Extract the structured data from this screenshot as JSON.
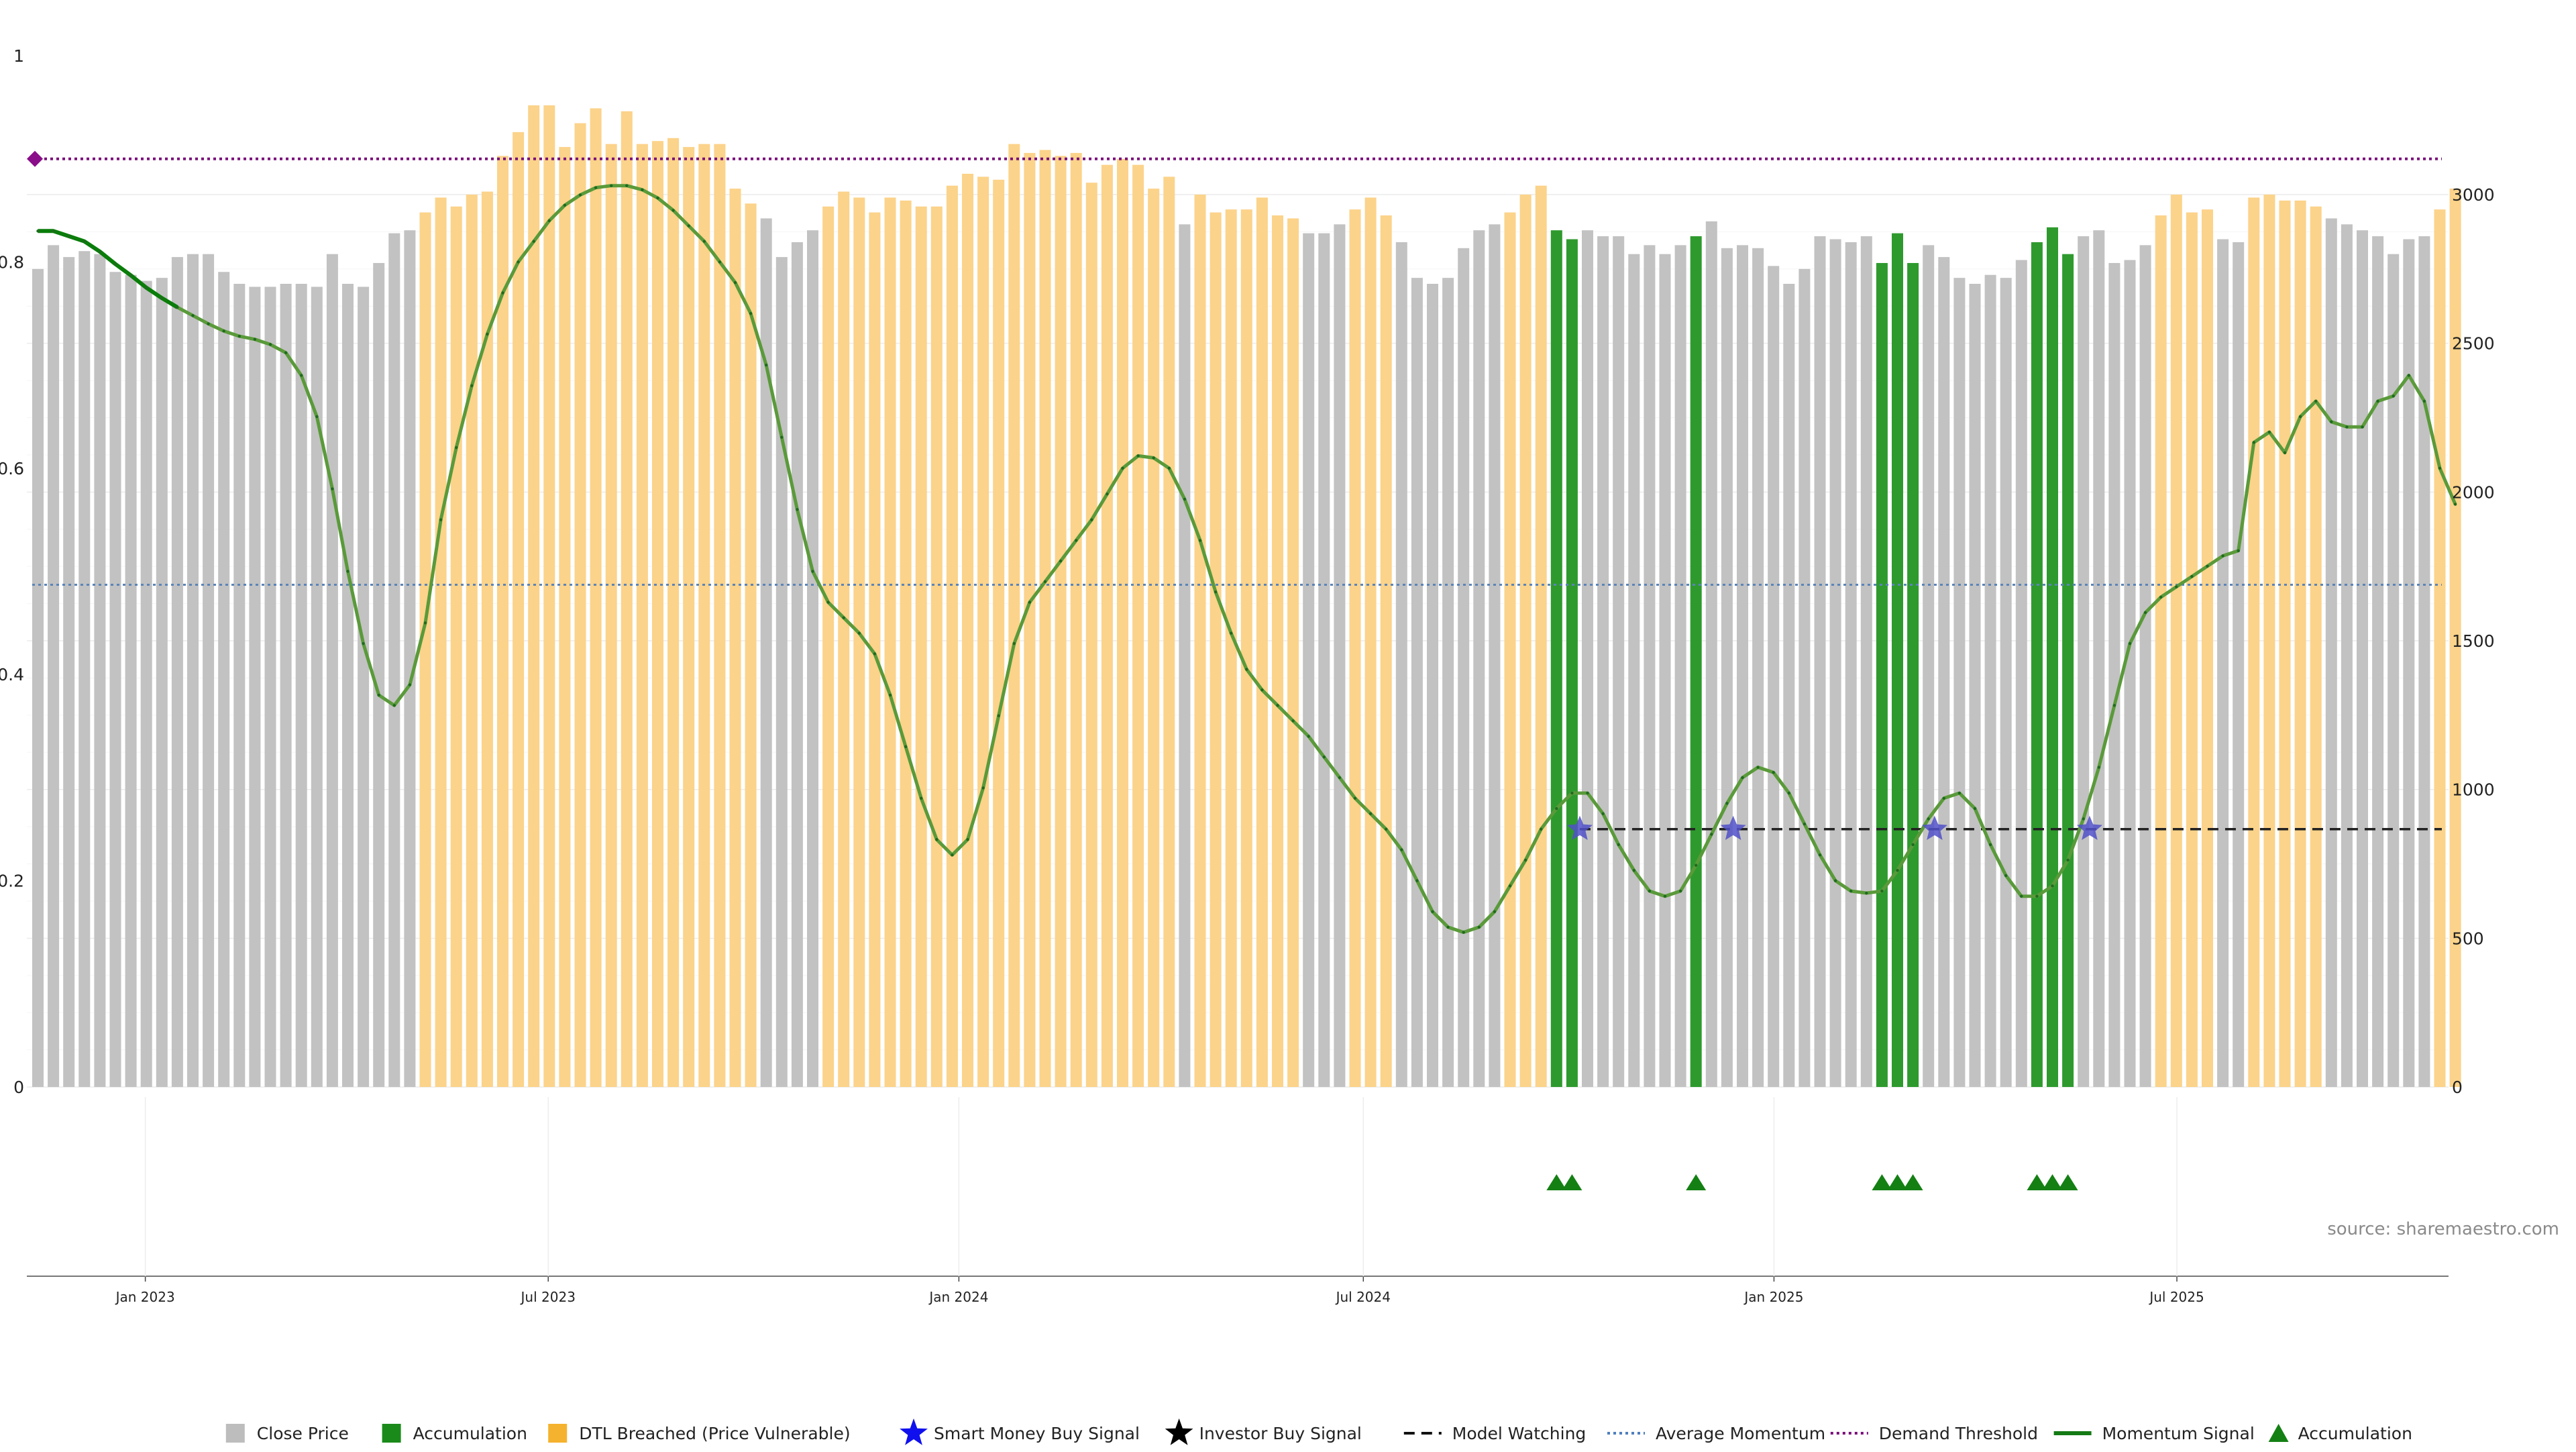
{
  "chart_data": {
    "type": "bar",
    "source_text": "source: sharemaestro.com",
    "left_axis": {
      "ticks": [
        {
          "label": "0",
          "value": 0
        },
        {
          "label": "0.2",
          "value": 0.2
        },
        {
          "label": "0.4",
          "value": 0.4
        },
        {
          "label": "0.6",
          "value": 0.6
        },
        {
          "label": "0.8",
          "value": 0.8
        },
        {
          "label": "1",
          "value": 1
        }
      ],
      "range": [
        0,
        1
      ]
    },
    "right_axis": {
      "ticks": [
        "0",
        "500",
        "1000",
        "1500",
        "2000",
        "2500",
        "3000"
      ],
      "range": [
        0,
        3469
      ]
    },
    "x_ticks": [
      "Jan 2023",
      "Jul 2023",
      "Jan 2024",
      "Jul 2024",
      "Jan 2025",
      "Jul 2025"
    ],
    "x_tick_bar_positions": [
      7.3,
      33.3,
      59.8,
      85.9,
      112.4,
      138.4
    ],
    "demand_threshold": 0.9,
    "average_momentum": 0.487,
    "model_watching_level": 0.25,
    "model_watching_start_bar": 99.5,
    "momentum_start_marker_value": 0.9,
    "price_bars": [
      {
        "v": 2750,
        "s": "close"
      },
      {
        "v": 2830,
        "s": "close"
      },
      {
        "v": 2790,
        "s": "close"
      },
      {
        "v": 2810,
        "s": "close"
      },
      {
        "v": 2800,
        "s": "close"
      },
      {
        "v": 2740,
        "s": "close"
      },
      {
        "v": 2730,
        "s": "close"
      },
      {
        "v": 2710,
        "s": "close"
      },
      {
        "v": 2720,
        "s": "close"
      },
      {
        "v": 2790,
        "s": "close"
      },
      {
        "v": 2800,
        "s": "close"
      },
      {
        "v": 2800,
        "s": "close"
      },
      {
        "v": 2740,
        "s": "close"
      },
      {
        "v": 2700,
        "s": "close"
      },
      {
        "v": 2690,
        "s": "close"
      },
      {
        "v": 2690,
        "s": "close"
      },
      {
        "v": 2700,
        "s": "close"
      },
      {
        "v": 2700,
        "s": "close"
      },
      {
        "v": 2690,
        "s": "close"
      },
      {
        "v": 2800,
        "s": "close"
      },
      {
        "v": 2700,
        "s": "close"
      },
      {
        "v": 2690,
        "s": "close"
      },
      {
        "v": 2770,
        "s": "close"
      },
      {
        "v": 2870,
        "s": "close"
      },
      {
        "v": 2880,
        "s": "close"
      },
      {
        "v": 2940,
        "s": "dtl"
      },
      {
        "v": 2990,
        "s": "dtl"
      },
      {
        "v": 2960,
        "s": "dtl"
      },
      {
        "v": 3000,
        "s": "dtl"
      },
      {
        "v": 3010,
        "s": "dtl"
      },
      {
        "v": 3130,
        "s": "dtl"
      },
      {
        "v": 3210,
        "s": "dtl"
      },
      {
        "v": 3300,
        "s": "dtl"
      },
      {
        "v": 3300,
        "s": "dtl"
      },
      {
        "v": 3160,
        "s": "dtl"
      },
      {
        "v": 3240,
        "s": "dtl"
      },
      {
        "v": 3290,
        "s": "dtl"
      },
      {
        "v": 3170,
        "s": "dtl"
      },
      {
        "v": 3280,
        "s": "dtl"
      },
      {
        "v": 3170,
        "s": "dtl"
      },
      {
        "v": 3180,
        "s": "dtl"
      },
      {
        "v": 3190,
        "s": "dtl"
      },
      {
        "v": 3160,
        "s": "dtl"
      },
      {
        "v": 3170,
        "s": "dtl"
      },
      {
        "v": 3170,
        "s": "dtl"
      },
      {
        "v": 3020,
        "s": "dtl"
      },
      {
        "v": 2970,
        "s": "dtl"
      },
      {
        "v": 2920,
        "s": "close"
      },
      {
        "v": 2790,
        "s": "close"
      },
      {
        "v": 2840,
        "s": "close"
      },
      {
        "v": 2880,
        "s": "close"
      },
      {
        "v": 2960,
        "s": "dtl"
      },
      {
        "v": 3010,
        "s": "dtl"
      },
      {
        "v": 2990,
        "s": "dtl"
      },
      {
        "v": 2940,
        "s": "dtl"
      },
      {
        "v": 2990,
        "s": "dtl"
      },
      {
        "v": 2980,
        "s": "dtl"
      },
      {
        "v": 2960,
        "s": "dtl"
      },
      {
        "v": 2960,
        "s": "dtl"
      },
      {
        "v": 3030,
        "s": "dtl"
      },
      {
        "v": 3070,
        "s": "dtl"
      },
      {
        "v": 3060,
        "s": "dtl"
      },
      {
        "v": 3050,
        "s": "dtl"
      },
      {
        "v": 3170,
        "s": "dtl"
      },
      {
        "v": 3140,
        "s": "dtl"
      },
      {
        "v": 3150,
        "s": "dtl"
      },
      {
        "v": 3130,
        "s": "dtl"
      },
      {
        "v": 3140,
        "s": "dtl"
      },
      {
        "v": 3040,
        "s": "dtl"
      },
      {
        "v": 3100,
        "s": "dtl"
      },
      {
        "v": 3120,
        "s": "dtl"
      },
      {
        "v": 3100,
        "s": "dtl"
      },
      {
        "v": 3020,
        "s": "dtl"
      },
      {
        "v": 3060,
        "s": "dtl"
      },
      {
        "v": 2900,
        "s": "close"
      },
      {
        "v": 3000,
        "s": "dtl"
      },
      {
        "v": 2940,
        "s": "dtl"
      },
      {
        "v": 2950,
        "s": "dtl"
      },
      {
        "v": 2950,
        "s": "dtl"
      },
      {
        "v": 2990,
        "s": "dtl"
      },
      {
        "v": 2930,
        "s": "dtl"
      },
      {
        "v": 2920,
        "s": "dtl"
      },
      {
        "v": 2870,
        "s": "close"
      },
      {
        "v": 2870,
        "s": "close"
      },
      {
        "v": 2900,
        "s": "close"
      },
      {
        "v": 2950,
        "s": "dtl"
      },
      {
        "v": 2990,
        "s": "dtl"
      },
      {
        "v": 2930,
        "s": "dtl"
      },
      {
        "v": 2840,
        "s": "close"
      },
      {
        "v": 2720,
        "s": "close"
      },
      {
        "v": 2700,
        "s": "close"
      },
      {
        "v": 2720,
        "s": "close"
      },
      {
        "v": 2820,
        "s": "close"
      },
      {
        "v": 2880,
        "s": "close"
      },
      {
        "v": 2900,
        "s": "close"
      },
      {
        "v": 2940,
        "s": "dtl"
      },
      {
        "v": 3000,
        "s": "dtl"
      },
      {
        "v": 3030,
        "s": "dtl"
      },
      {
        "v": 2880,
        "s": "accum"
      },
      {
        "v": 2850,
        "s": "accum"
      },
      {
        "v": 2880,
        "s": "close"
      },
      {
        "v": 2860,
        "s": "close"
      },
      {
        "v": 2860,
        "s": "close"
      },
      {
        "v": 2800,
        "s": "close"
      },
      {
        "v": 2830,
        "s": "close"
      },
      {
        "v": 2800,
        "s": "close"
      },
      {
        "v": 2830,
        "s": "close"
      },
      {
        "v": 2860,
        "s": "accum"
      },
      {
        "v": 2910,
        "s": "close"
      },
      {
        "v": 2820,
        "s": "close"
      },
      {
        "v": 2830,
        "s": "close"
      },
      {
        "v": 2820,
        "s": "close"
      },
      {
        "v": 2760,
        "s": "close"
      },
      {
        "v": 2700,
        "s": "close"
      },
      {
        "v": 2750,
        "s": "close"
      },
      {
        "v": 2860,
        "s": "close"
      },
      {
        "v": 2850,
        "s": "close"
      },
      {
        "v": 2840,
        "s": "close"
      },
      {
        "v": 2860,
        "s": "close"
      },
      {
        "v": 2770,
        "s": "accum"
      },
      {
        "v": 2870,
        "s": "accum"
      },
      {
        "v": 2770,
        "s": "accum"
      },
      {
        "v": 2830,
        "s": "close"
      },
      {
        "v": 2790,
        "s": "close"
      },
      {
        "v": 2720,
        "s": "close"
      },
      {
        "v": 2700,
        "s": "close"
      },
      {
        "v": 2730,
        "s": "close"
      },
      {
        "v": 2720,
        "s": "close"
      },
      {
        "v": 2780,
        "s": "close"
      },
      {
        "v": 2840,
        "s": "accum"
      },
      {
        "v": 2890,
        "s": "accum"
      },
      {
        "v": 2800,
        "s": "accum"
      },
      {
        "v": 2860,
        "s": "close"
      },
      {
        "v": 2880,
        "s": "close"
      },
      {
        "v": 2770,
        "s": "close"
      },
      {
        "v": 2780,
        "s": "close"
      },
      {
        "v": 2830,
        "s": "close"
      },
      {
        "v": 2930,
        "s": "dtl"
      },
      {
        "v": 3000,
        "s": "dtl"
      },
      {
        "v": 2940,
        "s": "dtl"
      },
      {
        "v": 2950,
        "s": "dtl"
      },
      {
        "v": 2850,
        "s": "close"
      },
      {
        "v": 2840,
        "s": "close"
      },
      {
        "v": 2990,
        "s": "dtl"
      },
      {
        "v": 3000,
        "s": "dtl"
      },
      {
        "v": 2980,
        "s": "dtl"
      },
      {
        "v": 2980,
        "s": "dtl"
      },
      {
        "v": 2960,
        "s": "dtl"
      },
      {
        "v": 2920,
        "s": "close"
      },
      {
        "v": 2900,
        "s": "close"
      },
      {
        "v": 2880,
        "s": "close"
      },
      {
        "v": 2860,
        "s": "close"
      },
      {
        "v": 2800,
        "s": "close"
      },
      {
        "v": 2850,
        "s": "close"
      },
      {
        "v": 2860,
        "s": "close"
      },
      {
        "v": 2950,
        "s": "dtl"
      },
      {
        "v": 3020,
        "s": "dtl"
      }
    ],
    "momentum_points": [
      [
        0,
        0.83
      ],
      [
        1,
        0.83
      ],
      [
        2,
        0.825
      ],
      [
        3,
        0.82
      ],
      [
        4,
        0.81
      ],
      [
        5,
        0.798
      ],
      [
        6,
        0.787
      ],
      [
        7,
        0.775
      ],
      [
        8,
        0.765
      ],
      [
        9,
        0.756
      ],
      [
        10,
        0.748
      ],
      [
        11,
        0.74
      ],
      [
        12,
        0.733
      ],
      [
        13,
        0.728
      ],
      [
        14,
        0.725
      ],
      [
        15,
        0.72
      ],
      [
        16,
        0.712
      ],
      [
        17,
        0.69
      ],
      [
        18,
        0.65
      ],
      [
        19,
        0.58
      ],
      [
        20,
        0.5
      ],
      [
        21,
        0.43
      ],
      [
        22,
        0.38
      ],
      [
        23,
        0.37
      ],
      [
        24,
        0.39
      ],
      [
        25,
        0.45
      ],
      [
        26,
        0.55
      ],
      [
        27,
        0.62
      ],
      [
        28,
        0.68
      ],
      [
        29,
        0.73
      ],
      [
        30,
        0.77
      ],
      [
        31,
        0.8
      ],
      [
        32,
        0.82
      ],
      [
        33,
        0.84
      ],
      [
        34,
        0.855
      ],
      [
        35,
        0.865
      ],
      [
        36,
        0.872
      ],
      [
        37,
        0.874
      ],
      [
        38,
        0.874
      ],
      [
        39,
        0.87
      ],
      [
        40,
        0.862
      ],
      [
        41,
        0.85
      ],
      [
        42,
        0.835
      ],
      [
        43,
        0.82
      ],
      [
        44,
        0.8
      ],
      [
        45,
        0.78
      ],
      [
        46,
        0.75
      ],
      [
        47,
        0.7
      ],
      [
        48,
        0.63
      ],
      [
        49,
        0.56
      ],
      [
        50,
        0.5
      ],
      [
        51,
        0.47
      ],
      [
        52,
        0.455
      ],
      [
        53,
        0.44
      ],
      [
        54,
        0.42
      ],
      [
        55,
        0.38
      ],
      [
        56,
        0.33
      ],
      [
        57,
        0.28
      ],
      [
        58,
        0.24
      ],
      [
        59,
        0.225
      ],
      [
        60,
        0.24
      ],
      [
        61,
        0.29
      ],
      [
        62,
        0.36
      ],
      [
        63,
        0.43
      ],
      [
        64,
        0.47
      ],
      [
        65,
        0.49
      ],
      [
        66,
        0.51
      ],
      [
        67,
        0.53
      ],
      [
        68,
        0.55
      ],
      [
        69,
        0.575
      ],
      [
        70,
        0.6
      ],
      [
        71,
        0.612
      ],
      [
        72,
        0.61
      ],
      [
        73,
        0.6
      ],
      [
        74,
        0.57
      ],
      [
        75,
        0.53
      ],
      [
        76,
        0.48
      ],
      [
        77,
        0.44
      ],
      [
        78,
        0.405
      ],
      [
        79,
        0.385
      ],
      [
        80,
        0.37
      ],
      [
        81,
        0.355
      ],
      [
        82,
        0.34
      ],
      [
        83,
        0.32
      ],
      [
        84,
        0.3
      ],
      [
        85,
        0.28
      ],
      [
        86,
        0.265
      ],
      [
        87,
        0.25
      ],
      [
        88,
        0.23
      ],
      [
        89,
        0.2
      ],
      [
        90,
        0.17
      ],
      [
        91,
        0.155
      ],
      [
        92,
        0.15
      ],
      [
        93,
        0.155
      ],
      [
        94,
        0.17
      ],
      [
        95,
        0.195
      ],
      [
        96,
        0.22
      ],
      [
        97,
        0.25
      ],
      [
        98,
        0.27
      ],
      [
        99,
        0.285
      ],
      [
        100,
        0.285
      ],
      [
        101,
        0.265
      ],
      [
        102,
        0.235
      ],
      [
        103,
        0.21
      ],
      [
        104,
        0.19
      ],
      [
        105,
        0.185
      ],
      [
        106,
        0.19
      ],
      [
        107,
        0.215
      ],
      [
        108,
        0.245
      ],
      [
        109,
        0.275
      ],
      [
        110,
        0.3
      ],
      [
        111,
        0.31
      ],
      [
        112,
        0.305
      ],
      [
        113,
        0.285
      ],
      [
        114,
        0.255
      ],
      [
        115,
        0.225
      ],
      [
        116,
        0.2
      ],
      [
        117,
        0.19
      ],
      [
        118,
        0.188
      ],
      [
        119,
        0.19
      ],
      [
        120,
        0.21
      ],
      [
        121,
        0.235
      ],
      [
        122,
        0.26
      ],
      [
        123,
        0.28
      ],
      [
        124,
        0.285
      ],
      [
        125,
        0.27
      ],
      [
        126,
        0.235
      ],
      [
        127,
        0.205
      ],
      [
        128,
        0.185
      ],
      [
        129,
        0.185
      ],
      [
        130,
        0.195
      ],
      [
        131,
        0.22
      ],
      [
        132,
        0.26
      ],
      [
        133,
        0.31
      ],
      [
        134,
        0.37
      ],
      [
        135,
        0.43
      ],
      [
        136,
        0.46
      ],
      [
        137,
        0.475
      ],
      [
        138,
        0.485
      ],
      [
        139,
        0.495
      ],
      [
        140,
        0.505
      ],
      [
        141,
        0.515
      ],
      [
        142,
        0.52
      ],
      [
        143,
        0.625
      ],
      [
        144,
        0.635
      ],
      [
        145,
        0.615
      ],
      [
        146,
        0.65
      ],
      [
        147,
        0.665
      ],
      [
        148,
        0.645
      ],
      [
        149,
        0.64
      ],
      [
        150,
        0.64
      ],
      [
        151,
        0.665
      ],
      [
        152,
        0.67
      ],
      [
        153,
        0.69
      ],
      [
        154,
        0.665
      ],
      [
        155,
        0.6
      ],
      [
        156,
        0.565
      ]
    ],
    "smart_money_signal_bars": [
      99.5,
      109.4,
      122.4,
      132.4
    ],
    "accumulation_triangle_bars": [
      98,
      99,
      107,
      119,
      120,
      121,
      129,
      130,
      131
    ],
    "legend": [
      {
        "key": "close",
        "label": "Close Price",
        "type": "square",
        "color": "#bdbdbd"
      },
      {
        "key": "accum",
        "label": "Accumulation",
        "type": "square",
        "color": "#1a8a1a"
      },
      {
        "key": "dtl",
        "label": "DTL Breached (Price Vulnerable)",
        "type": "square",
        "color": "#f5b22e"
      },
      {
        "key": "smart",
        "label": "Smart Money Buy Signal",
        "type": "star",
        "color": "#1010ee"
      },
      {
        "key": "investor",
        "label": "Investor Buy Signal",
        "type": "star",
        "color": "#000000"
      },
      {
        "key": "watch",
        "label": "Model Watching",
        "type": "dash",
        "color": "#111111"
      },
      {
        "key": "avg",
        "label": "Average Momentum",
        "type": "dot",
        "color": "#4f7fbf"
      },
      {
        "key": "demand",
        "label": "Demand Threshold",
        "type": "dot",
        "color": "#7a0f7a"
      },
      {
        "key": "momentum",
        "label": "Momentum Signal",
        "type": "line",
        "color": "#147a14"
      },
      {
        "key": "accum_tri",
        "label": "Accumulation",
        "type": "triangle",
        "color": "#148014"
      }
    ],
    "colors": {
      "close": "#c2c2c2",
      "dtl": "#fbd38a",
      "accum": "#2e9a2e",
      "momentum_dark": "#0a7d0a",
      "momentum_light": "#5a9a3a",
      "smart_star": "#5050c8",
      "triangle": "#148014"
    }
  }
}
